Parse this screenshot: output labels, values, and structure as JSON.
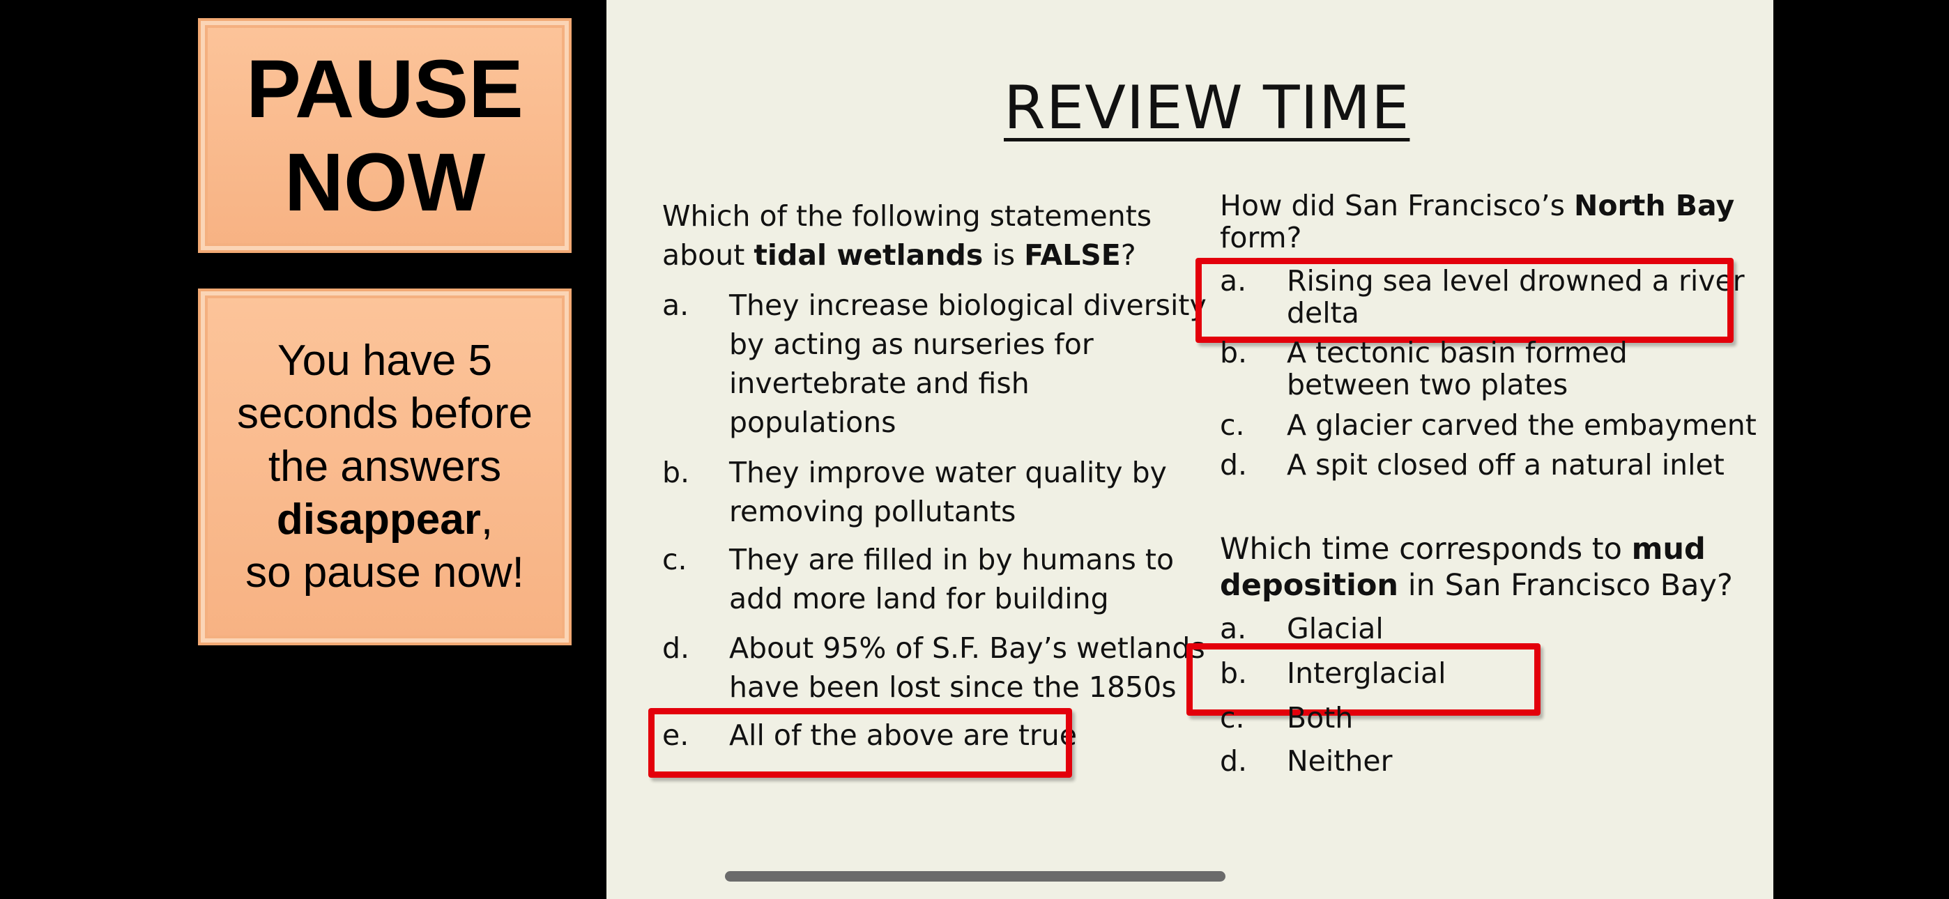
{
  "pause_box": {
    "line1": "PAUSE",
    "line2": "NOW"
  },
  "info_box": {
    "line1": "You have 5",
    "line2": "seconds before",
    "line3": "the answers",
    "line4_bold": "disappear",
    "line4_rest": ",",
    "line5": "so pause now!"
  },
  "slide": {
    "title": "REVIEW TIME",
    "q1": {
      "text_1": "Which of the following statements",
      "text_2a": "about ",
      "text_2b": "tidal wetlands",
      "text_2c": " is ",
      "text_2d": "FALSE",
      "text_2e": "?",
      "options": [
        {
          "letter": "a.",
          "lines": [
            "They increase biological diversity",
            "by acting as nurseries for",
            "invertebrate and fish",
            "populations"
          ]
        },
        {
          "letter": "b.",
          "lines": [
            "They improve water quality by",
            "removing pollutants"
          ]
        },
        {
          "letter": "c.",
          "lines": [
            "They are filled in by humans to",
            "add more land for building"
          ]
        },
        {
          "letter": "d.",
          "lines": [
            "About 95% of S.F. Bay’s wetlands",
            "have been lost since the 1850s"
          ]
        },
        {
          "letter": "e.",
          "lines": [
            "All of the above are true"
          ]
        }
      ]
    },
    "q2": {
      "text_1a": "How did San Francisco’s ",
      "text_1b": "North Bay",
      "text_2": "form?",
      "options": [
        {
          "letter": "a.",
          "lines": [
            "Rising sea level drowned a river",
            "delta"
          ]
        },
        {
          "letter": "b.",
          "lines": [
            "A tectonic basin formed",
            "between two plates"
          ]
        },
        {
          "letter": "c.",
          "lines": [
            "A glacier carved the embayment"
          ]
        },
        {
          "letter": "d.",
          "lines": [
            "A spit closed off a natural inlet"
          ]
        }
      ]
    },
    "q3": {
      "text_1a": "Which time corresponds to ",
      "text_1b": "mud",
      "text_2a": "deposition",
      "text_2b": " in San Francisco  Bay?",
      "options": [
        {
          "letter": "a.",
          "lines": [
            "Glacial"
          ]
        },
        {
          "letter": "b.",
          "lines": [
            "Interglacial"
          ]
        },
        {
          "letter": "c.",
          "lines": [
            "Both"
          ]
        },
        {
          "letter": "d.",
          "lines": [
            "Neither"
          ]
        }
      ]
    }
  },
  "colors": {
    "highlight": "#e3000b",
    "slide_bg": "#f0f0e4",
    "box_fill": "#f9b98c"
  }
}
